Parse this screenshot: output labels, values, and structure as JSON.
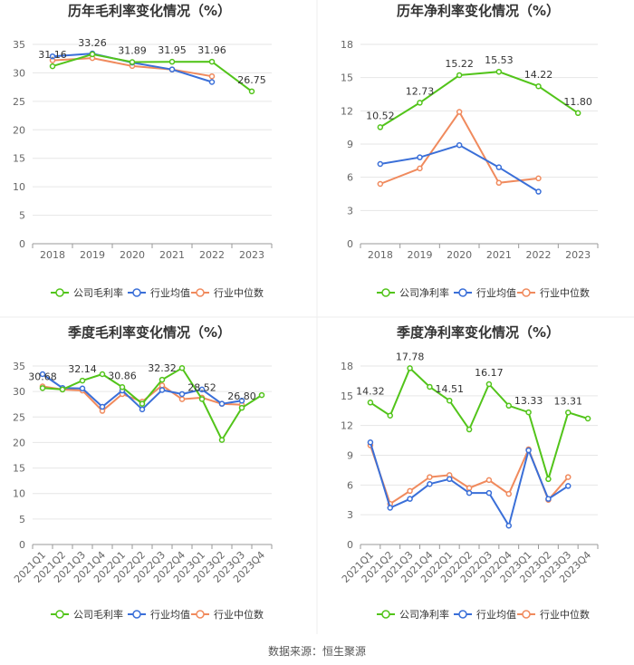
{
  "colors": {
    "company": "#52c41a",
    "industry_avg": "#3a6fd8",
    "industry_median": "#f08a5d",
    "grid": "#e6e6e6",
    "axis": "#999999",
    "title": "#333333"
  },
  "source_text": "数据来源：恒生聚源",
  "chart_data": [
    {
      "type": "line",
      "title": "历年毛利率变化情况（%）",
      "categories": [
        "2018",
        "2019",
        "2020",
        "2021",
        "2022",
        "2023"
      ],
      "ylim": [
        0,
        35
      ],
      "yticks": [
        0,
        5,
        10,
        15,
        20,
        25,
        30,
        35
      ],
      "grid": true,
      "legend_position": "bottom",
      "series": [
        {
          "name": "公司毛利率",
          "values": [
            31.16,
            33.26,
            31.89,
            31.95,
            31.96,
            26.75
          ]
        },
        {
          "name": "行业均值",
          "values": [
            32.9,
            33.4,
            31.8,
            30.6,
            28.4,
            null
          ]
        },
        {
          "name": "行业中位数",
          "values": [
            32.2,
            32.6,
            31.2,
            30.6,
            29.4,
            null
          ]
        }
      ],
      "labeled_points": [
        {
          "x": 0,
          "text": "31.16"
        },
        {
          "x": 1,
          "text": "33.26"
        },
        {
          "x": 2,
          "text": "31.89"
        },
        {
          "x": 3,
          "text": "31.95"
        },
        {
          "x": 4,
          "text": "31.96"
        },
        {
          "x": 5,
          "text": "26.75"
        }
      ]
    },
    {
      "type": "line",
      "title": "历年净利率变化情况（%）",
      "categories": [
        "2018",
        "2019",
        "2020",
        "2021",
        "2022",
        "2023"
      ],
      "ylim": [
        0,
        18
      ],
      "yticks": [
        0,
        3,
        6,
        9,
        12,
        15,
        18
      ],
      "grid": true,
      "legend_position": "bottom",
      "series": [
        {
          "name": "公司净利率",
          "values": [
            10.52,
            12.73,
            15.22,
            15.53,
            14.22,
            11.8
          ]
        },
        {
          "name": "行业均值",
          "values": [
            7.2,
            7.8,
            8.9,
            6.9,
            4.7,
            null
          ]
        },
        {
          "name": "行业中位数",
          "values": [
            5.4,
            6.8,
            11.9,
            5.5,
            5.9,
            null
          ]
        }
      ],
      "labeled_points": [
        {
          "x": 0,
          "text": "10.52"
        },
        {
          "x": 1,
          "text": "12.73"
        },
        {
          "x": 2,
          "text": "15.22"
        },
        {
          "x": 3,
          "text": "15.53"
        },
        {
          "x": 4,
          "text": "14.22"
        },
        {
          "x": 5,
          "text": "11.80"
        }
      ]
    },
    {
      "type": "line",
      "title": "季度毛利率变化情况（%）",
      "categories": [
        "2021Q1",
        "2021Q2",
        "2021Q3",
        "2021Q4",
        "2022Q1",
        "2022Q2",
        "2022Q3",
        "2022Q4",
        "2023Q1",
        "2023Q2",
        "2023Q3",
        "2023Q4"
      ],
      "ylim": [
        0,
        35
      ],
      "yticks": [
        0,
        5,
        10,
        15,
        20,
        25,
        30,
        35
      ],
      "grid": true,
      "legend_position": "bottom",
      "series": [
        {
          "name": "公司毛利率",
          "values": [
            30.68,
            30.4,
            32.14,
            33.4,
            30.86,
            27.6,
            32.32,
            34.6,
            28.52,
            20.5,
            26.8,
            29.3
          ]
        },
        {
          "name": "行业均值",
          "values": [
            33.4,
            30.7,
            30.6,
            27.0,
            30.2,
            26.5,
            30.3,
            29.5,
            30.4,
            27.6,
            28.2,
            null
          ]
        },
        {
          "name": "行业中位数",
          "values": [
            31.0,
            30.4,
            30.2,
            26.2,
            29.5,
            28.0,
            31.2,
            28.5,
            28.8,
            27.6,
            27.4,
            null
          ]
        }
      ],
      "labeled_points": [
        {
          "x": 0,
          "text": "30.68"
        },
        {
          "x": 2,
          "text": "32.14"
        },
        {
          "x": 4,
          "text": "30.86"
        },
        {
          "x": 6,
          "text": "32.32"
        },
        {
          "x": 8,
          "text": "28.52"
        },
        {
          "x": 10,
          "text": "26.80"
        }
      ]
    },
    {
      "type": "line",
      "title": "季度净利率变化情况（%）",
      "categories": [
        "2021Q1",
        "2021Q2",
        "2021Q3",
        "2021Q4",
        "2022Q1",
        "2022Q2",
        "2022Q3",
        "2022Q4",
        "2023Q1",
        "2023Q2",
        "2023Q3",
        "2023Q4"
      ],
      "ylim": [
        0,
        18
      ],
      "yticks": [
        0,
        3,
        6,
        9,
        12,
        15,
        18
      ],
      "grid": true,
      "legend_position": "bottom",
      "series": [
        {
          "name": "公司净利率",
          "values": [
            14.32,
            13.0,
            17.78,
            15.9,
            14.51,
            11.6,
            16.17,
            14.0,
            13.33,
            6.6,
            13.31,
            12.7
          ]
        },
        {
          "name": "行业均值",
          "values": [
            10.3,
            3.7,
            4.6,
            6.1,
            6.6,
            5.2,
            5.2,
            1.9,
            9.5,
            4.6,
            5.9,
            null
          ]
        },
        {
          "name": "行业中位数",
          "values": [
            10.0,
            4.1,
            5.4,
            6.8,
            7.0,
            5.7,
            6.5,
            5.1,
            9.6,
            4.5,
            6.8,
            null
          ]
        }
      ],
      "labeled_points": [
        {
          "x": 0,
          "text": "14.32"
        },
        {
          "x": 2,
          "text": "17.78"
        },
        {
          "x": 4,
          "text": "14.51"
        },
        {
          "x": 6,
          "text": "16.17"
        },
        {
          "x": 8,
          "text": "13.33"
        },
        {
          "x": 10,
          "text": "13.31"
        }
      ]
    }
  ]
}
